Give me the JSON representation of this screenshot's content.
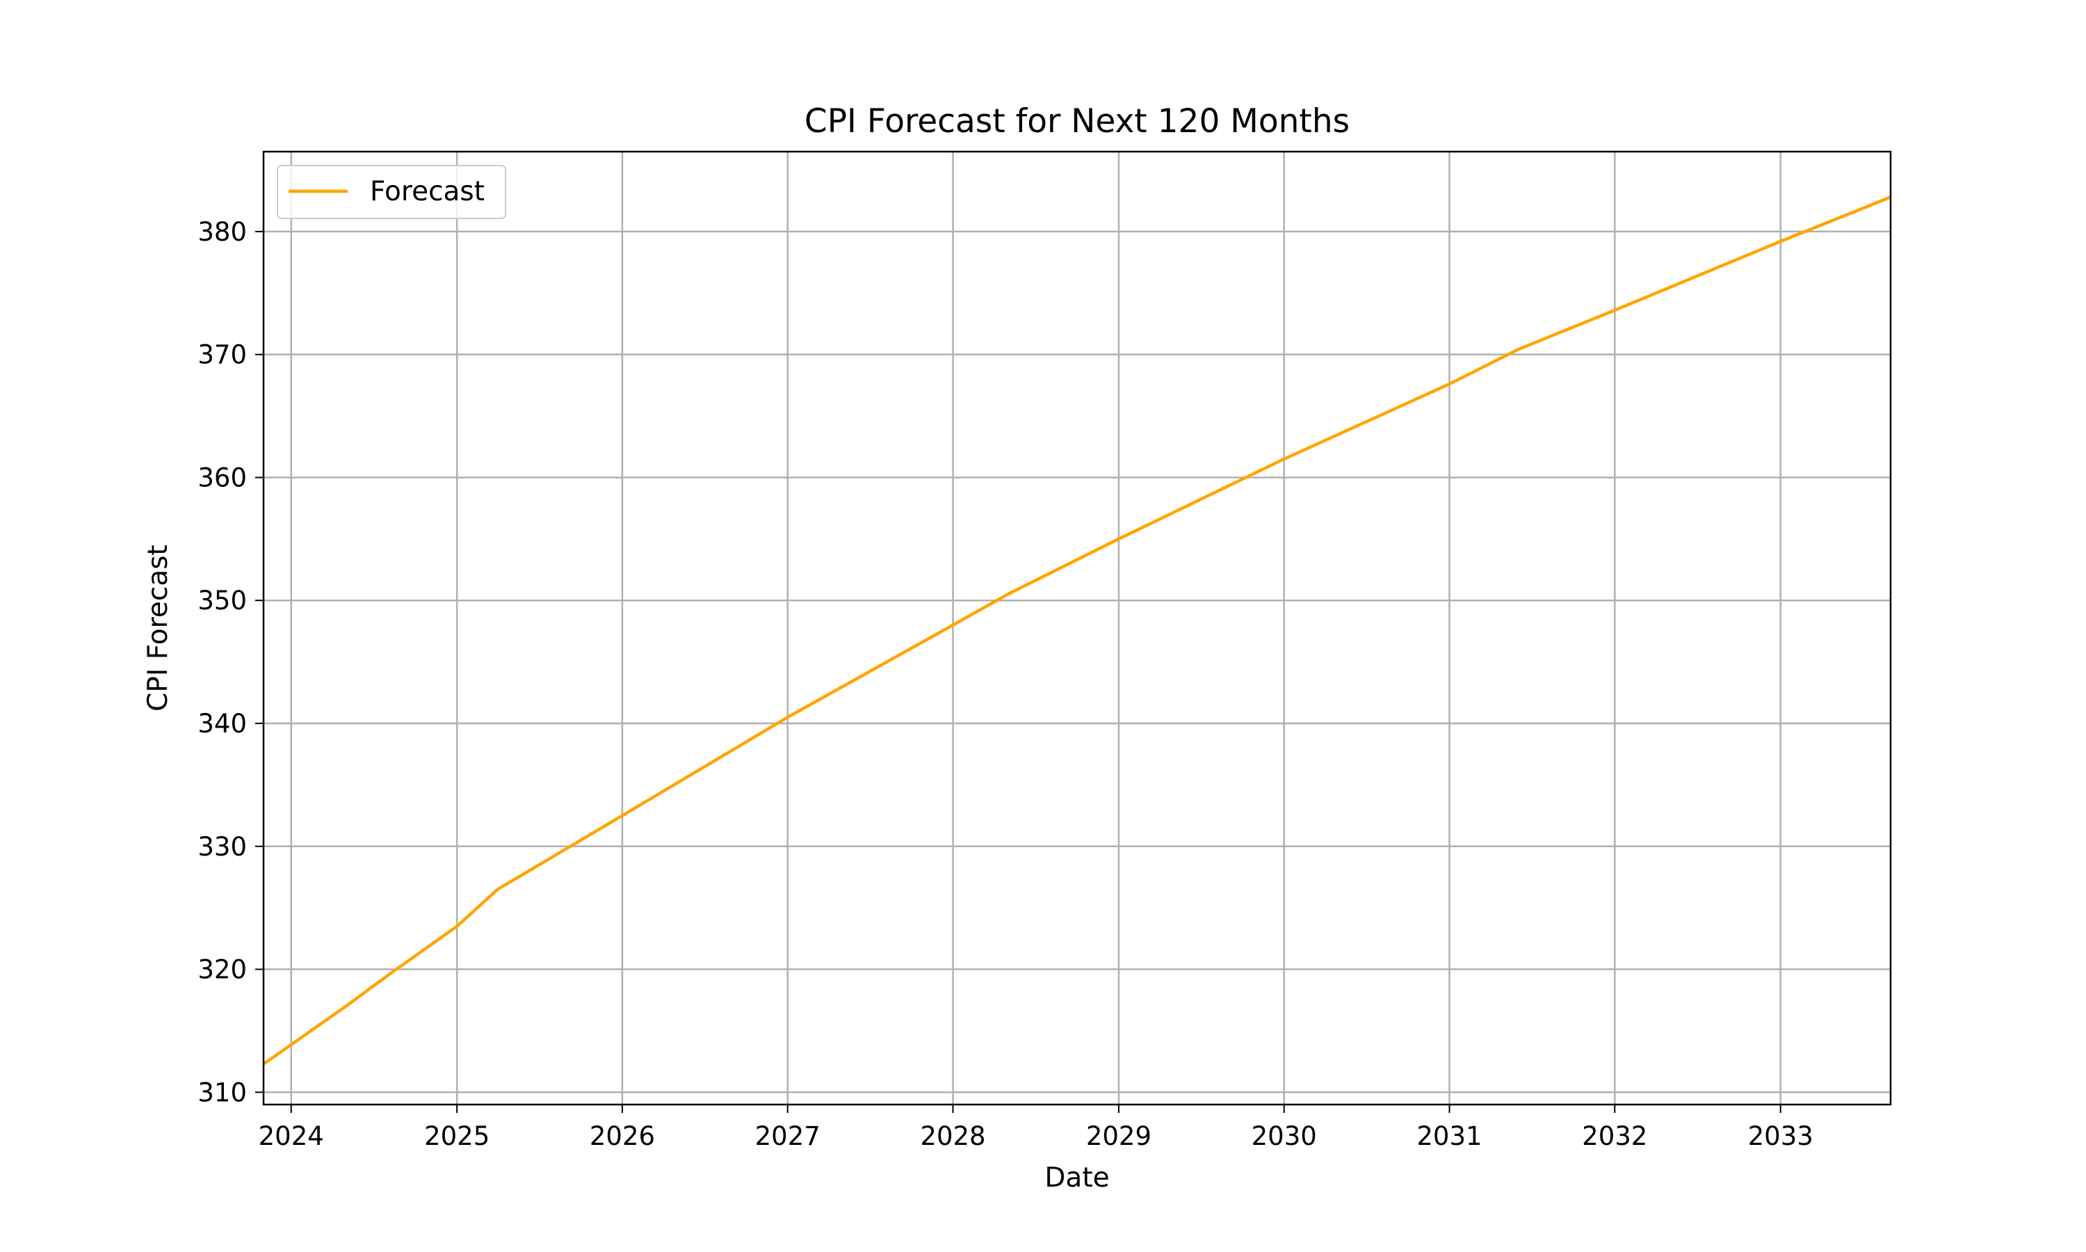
{
  "chart_data": {
    "type": "line",
    "title": "CPI Forecast for Next 120 Months",
    "xlabel": "Date",
    "ylabel": "CPI Forecast",
    "xlim": [
      "2023-11-01",
      "2033-09-01"
    ],
    "ylim": [
      309,
      386.5
    ],
    "x_ticks": [
      {
        "date": "2024-01-01",
        "label": "2024"
      },
      {
        "date": "2025-01-01",
        "label": "2025"
      },
      {
        "date": "2026-01-01",
        "label": "2026"
      },
      {
        "date": "2027-01-01",
        "label": "2027"
      },
      {
        "date": "2028-01-01",
        "label": "2028"
      },
      {
        "date": "2029-01-01",
        "label": "2029"
      },
      {
        "date": "2030-01-01",
        "label": "2030"
      },
      {
        "date": "2031-01-01",
        "label": "2031"
      },
      {
        "date": "2032-01-01",
        "label": "2032"
      },
      {
        "date": "2033-01-01",
        "label": "2033"
      }
    ],
    "y_ticks": [
      310,
      320,
      330,
      340,
      350,
      360,
      370,
      380
    ],
    "grid": true,
    "legend_position": "top-left",
    "series": [
      {
        "name": "Forecast",
        "color": "#FFA500",
        "points": [
          [
            "2023-11-01",
            312.3
          ],
          [
            "2024-05-01",
            317.0
          ],
          [
            "2024-08-01",
            319.5
          ],
          [
            "2025-01-01",
            323.5
          ],
          [
            "2025-04-01",
            326.5
          ],
          [
            "2026-01-01",
            332.5
          ],
          [
            "2027-01-01",
            340.5
          ],
          [
            "2028-01-01",
            348.0
          ],
          [
            "2028-05-01",
            350.5
          ],
          [
            "2029-01-01",
            355.0
          ],
          [
            "2030-01-01",
            361.5
          ],
          [
            "2031-01-01",
            367.6
          ],
          [
            "2031-06-01",
            370.4
          ],
          [
            "2032-01-01",
            373.6
          ],
          [
            "2033-01-01",
            379.2
          ],
          [
            "2033-09-01",
            382.8
          ]
        ]
      }
    ]
  }
}
